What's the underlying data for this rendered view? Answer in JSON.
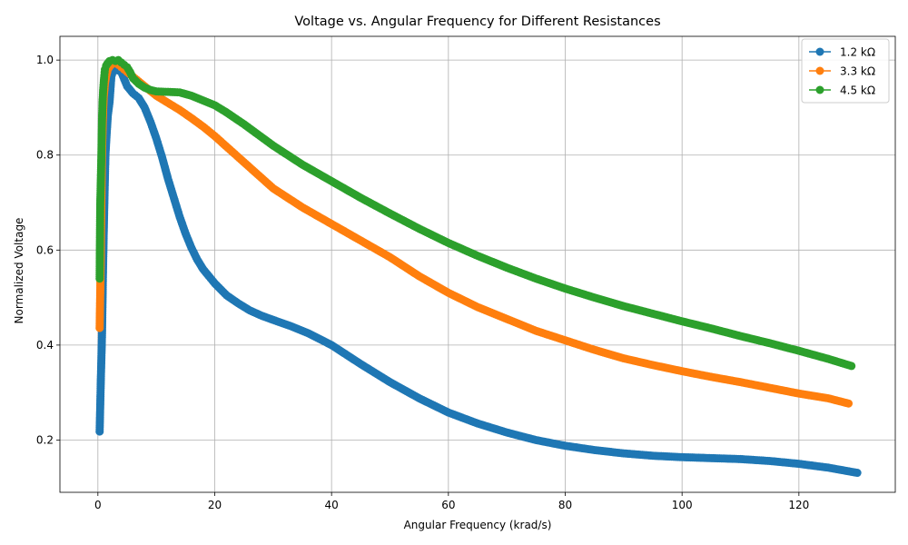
{
  "chart_data": {
    "type": "line",
    "title": "Voltage vs. Angular Frequency for Different Resistances",
    "xlabel": "Angular Frequency (krad/s)",
    "ylabel": "Normalized Voltage",
    "xlim": [
      -6.5,
      136.5
    ],
    "ylim": [
      0.09,
      1.05
    ],
    "xticks": [
      0,
      20,
      40,
      60,
      80,
      100,
      120
    ],
    "yticks": [
      0.2,
      0.4,
      0.6,
      0.8,
      1.0
    ],
    "xtick_labels": [
      "0",
      "20",
      "40",
      "60",
      "80",
      "100",
      "120"
    ],
    "ytick_labels": [
      "0.2",
      "0.4",
      "0.6",
      "0.8",
      "1.0"
    ],
    "grid": true,
    "legend_position": "top-right",
    "series": [
      {
        "name": "1.2 kΩ",
        "color": "#1f77b4",
        "x": [
          0.3,
          0.5,
          0.7,
          0.8,
          0.9,
          1.0,
          1.1,
          1.2,
          1.3,
          1.5,
          1.7,
          2.0,
          2.3,
          2.7,
          3.0,
          3.5,
          4.0,
          4.5,
          5.0,
          6.0,
          7.0,
          8.0,
          9.0,
          10.0,
          11.0,
          12.0,
          13.0,
          14.0,
          15.0,
          16.0,
          17.0,
          18.0,
          19.0,
          20.0,
          22.0,
          24.0,
          26.0,
          28.0,
          30.0,
          33.0,
          36.0,
          40.0,
          45.0,
          50.0,
          55.0,
          60.0,
          65.0,
          70.0,
          75.0,
          80.0,
          85.0,
          90.0,
          95.0,
          100.0,
          105.0,
          110.0,
          115.0,
          120.0,
          125.0,
          130.0
        ],
        "y": [
          0.218,
          0.326,
          0.42,
          0.5,
          0.573,
          0.638,
          0.697,
          0.752,
          0.802,
          0.845,
          0.883,
          0.912,
          0.965,
          0.982,
          0.99,
          0.978,
          0.975,
          0.96,
          0.945,
          0.93,
          0.92,
          0.9,
          0.87,
          0.835,
          0.795,
          0.75,
          0.71,
          0.67,
          0.635,
          0.605,
          0.58,
          0.56,
          0.545,
          0.53,
          0.505,
          0.488,
          0.473,
          0.462,
          0.453,
          0.44,
          0.425,
          0.4,
          0.36,
          0.322,
          0.288,
          0.258,
          0.235,
          0.216,
          0.2,
          0.188,
          0.179,
          0.172,
          0.167,
          0.164,
          0.162,
          0.16,
          0.156,
          0.15,
          0.142,
          0.131
        ]
      },
      {
        "name": "3.3 kΩ",
        "color": "#ff7f0e",
        "x": [
          0.3,
          0.5,
          0.6,
          0.7,
          0.8,
          0.9,
          1.0,
          1.2,
          1.4,
          1.6,
          1.8,
          2.0,
          2.3,
          2.6,
          3.0,
          3.5,
          4.0,
          4.5,
          5.0,
          6.0,
          7.0,
          8.0,
          9.0,
          10.0,
          12.0,
          14.0,
          16.0,
          18.0,
          20.0,
          25.0,
          30.0,
          35.0,
          40.0,
          45.0,
          50.0,
          55.0,
          60.0,
          65.0,
          70.0,
          75.0,
          80.0,
          85.0,
          90.0,
          95.0,
          100.0,
          105.0,
          110.0,
          115.0,
          120.0,
          125.0,
          128.5
        ],
        "y": [
          0.436,
          0.588,
          0.705,
          0.792,
          0.852,
          0.895,
          0.922,
          0.95,
          0.965,
          0.975,
          0.982,
          0.986,
          0.99,
          0.993,
          0.994,
          0.99,
          0.985,
          0.98,
          0.975,
          0.965,
          0.955,
          0.945,
          0.935,
          0.925,
          0.91,
          0.895,
          0.878,
          0.86,
          0.84,
          0.785,
          0.73,
          0.69,
          0.655,
          0.62,
          0.585,
          0.545,
          0.51,
          0.48,
          0.455,
          0.43,
          0.41,
          0.39,
          0.372,
          0.358,
          0.345,
          0.333,
          0.322,
          0.31,
          0.298,
          0.288,
          0.277
        ]
      },
      {
        "name": "4.5 kΩ",
        "color": "#2ca02c",
        "x": [
          0.3,
          0.4,
          0.6,
          0.7,
          0.8,
          0.9,
          1.0,
          1.1,
          1.2,
          1.4,
          1.6,
          1.8,
          2.0,
          2.5,
          3.0,
          3.5,
          4.0,
          4.5,
          5.0,
          5.5,
          6.0,
          7.0,
          8.0,
          9.0,
          10.0,
          12.0,
          14.0,
          16.0,
          18.0,
          20.0,
          22.0,
          25.0,
          30.0,
          35.0,
          40.0,
          45.0,
          50.0,
          55.0,
          60.0,
          65.0,
          70.0,
          75.0,
          80.0,
          85.0,
          90.0,
          95.0,
          100.0,
          105.0,
          110.0,
          115.0,
          120.0,
          125.0,
          129.0
        ],
        "y": [
          0.54,
          0.695,
          0.8,
          0.872,
          0.912,
          0.937,
          0.953,
          0.968,
          0.98,
          0.988,
          0.992,
          0.995,
          0.998,
          1.0,
          0.998,
          1.0,
          0.995,
          0.99,
          0.985,
          0.975,
          0.962,
          0.95,
          0.942,
          0.937,
          0.934,
          0.933,
          0.932,
          0.925,
          0.915,
          0.905,
          0.89,
          0.865,
          0.82,
          0.78,
          0.745,
          0.71,
          0.677,
          0.645,
          0.615,
          0.588,
          0.563,
          0.54,
          0.519,
          0.5,
          0.482,
          0.466,
          0.45,
          0.435,
          0.419,
          0.404,
          0.388,
          0.371,
          0.356
        ]
      }
    ]
  }
}
